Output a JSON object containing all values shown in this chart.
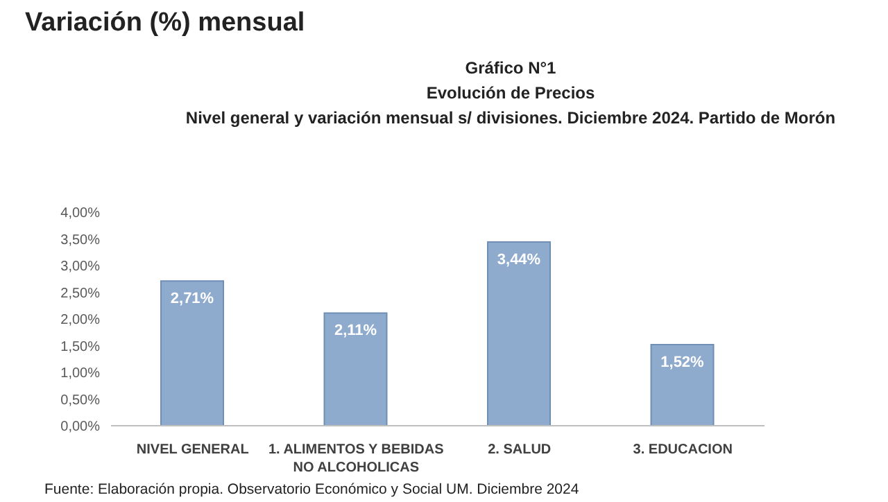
{
  "chart_data": {
    "type": "bar",
    "title": "Variación (%) mensual",
    "subtitle": "Gráfico N°1\nEvolución de Precios\nNivel general y variación mensual s/ divisiones. Diciembre 2024. Partido de Morón",
    "categories": [
      "NIVEL GENERAL",
      "1. ALIMENTOS Y BEBIDAS NO ALCOHOLICAS",
      "2. SALUD",
      "3. EDUCACION"
    ],
    "values": [
      2.71,
      2.11,
      3.44,
      1.52
    ],
    "color": "#8eaacc",
    "value_labels": [
      "2,71%",
      "2,11%",
      "3,44%",
      "1,52%"
    ],
    "ylim": [
      0,
      4
    ],
    "yticks": [
      {
        "value": 0,
        "label": "0,00%"
      },
      {
        "value": 0.5,
        "label": "0,50%"
      },
      {
        "value": 1,
        "label": "1,00%"
      },
      {
        "value": 1.5,
        "label": "1,50%"
      },
      {
        "value": 2,
        "label": "2,00%"
      },
      {
        "value": 2.5,
        "label": "2,50%"
      },
      {
        "value": 3,
        "label": "3,00%"
      },
      {
        "value": 3.5,
        "label": "3,50%"
      },
      {
        "value": 4,
        "label": "4,00%"
      }
    ],
    "grid": false,
    "annotations": [
      "Fuente: Elaboración propia. Observatorio Económico y Social UM. Diciembre 2024"
    ]
  }
}
